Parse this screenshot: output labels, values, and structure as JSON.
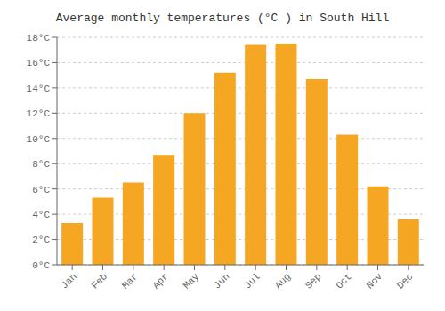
{
  "chart_data": {
    "type": "bar",
    "title": "Average monthly temperatures (°C ) in South Hill",
    "categories": [
      "Jan",
      "Feb",
      "Mar",
      "Apr",
      "May",
      "Jun",
      "Jul",
      "Aug",
      "Sep",
      "Oct",
      "Nov",
      "Dec"
    ],
    "values": [
      3.3,
      5.3,
      6.5,
      8.7,
      12.0,
      15.2,
      17.4,
      17.5,
      14.7,
      10.3,
      6.2,
      3.6
    ],
    "color": "#F5A623",
    "ylim": [
      0,
      18
    ],
    "yticks": [
      {
        "value": 0,
        "label": "0°C"
      },
      {
        "value": 2,
        "label": "2°C"
      },
      {
        "value": 4,
        "label": "4°C"
      },
      {
        "value": 6,
        "label": "6°C"
      },
      {
        "value": 8,
        "label": "8°C"
      },
      {
        "value": 10,
        "label": "10°C"
      },
      {
        "value": 12,
        "label": "12°C"
      },
      {
        "value": 14,
        "label": "14°C"
      },
      {
        "value": 16,
        "label": "16°C"
      },
      {
        "value": 18,
        "label": "18°C"
      }
    ],
    "grid": true
  }
}
